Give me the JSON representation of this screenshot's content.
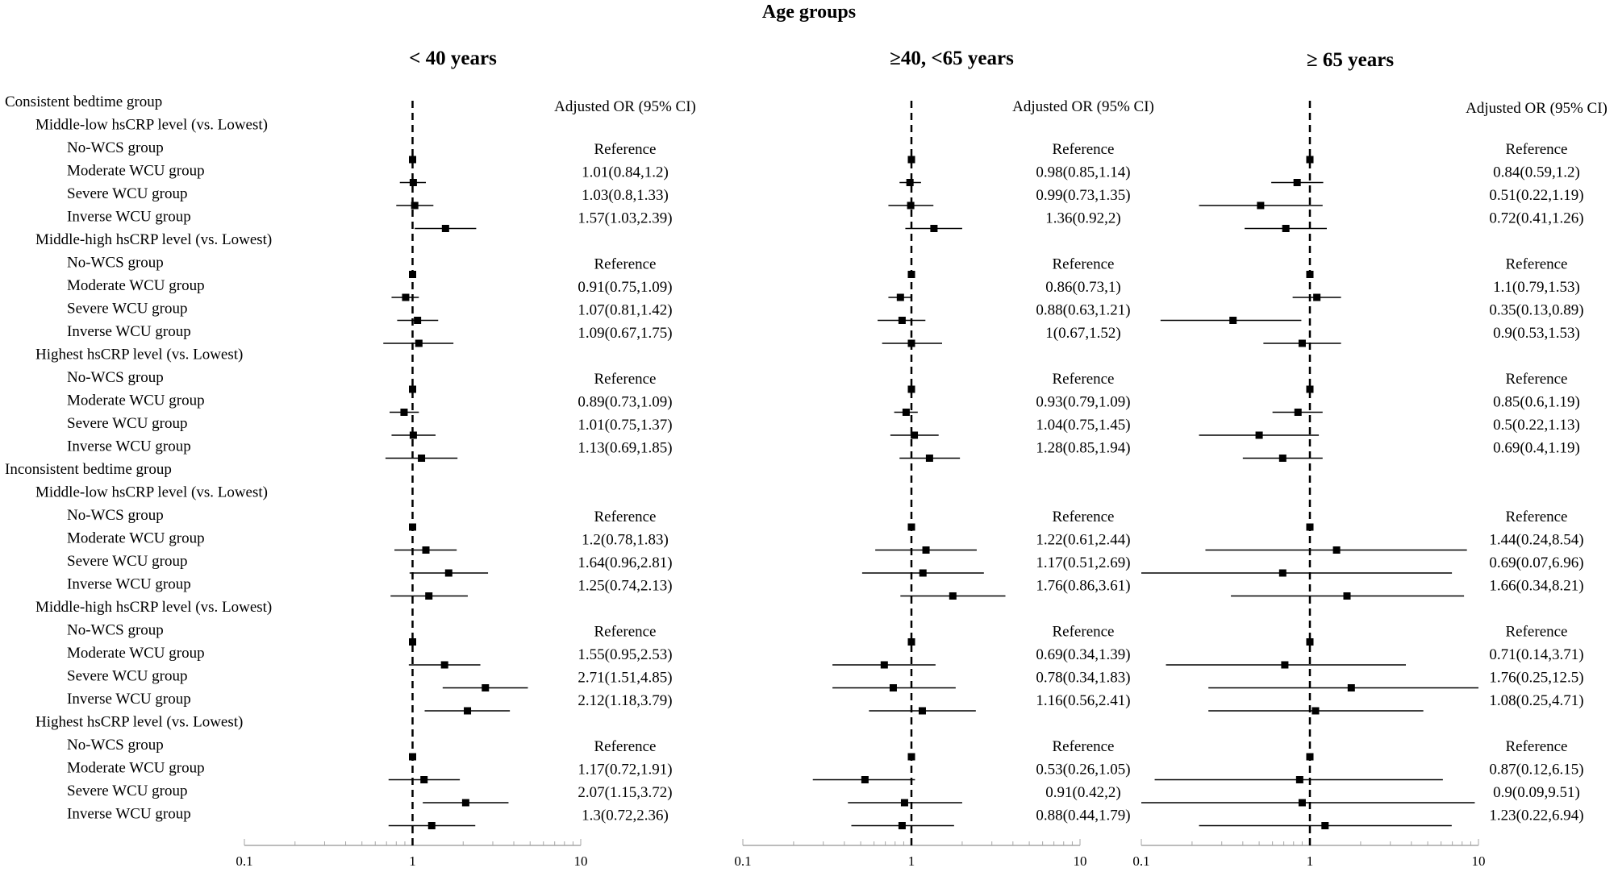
{
  "title": "Age groups",
  "ci_header": "Adjusted OR (95% CI)",
  "axis_ticks": [
    "0.1",
    "1",
    "10"
  ],
  "rows": [
    {
      "label": "Consistent bedtime group",
      "level": 0
    },
    {
      "label": "Middle-low hsCRP level (vs. Lowest)",
      "level": 1
    },
    {
      "label": "No-WCS group",
      "level": 2
    },
    {
      "label": "Moderate WCU group",
      "level": 2
    },
    {
      "label": "Severe WCU group",
      "level": 2
    },
    {
      "label": "Inverse WCU group",
      "level": 2
    },
    {
      "label": "Middle-high hsCRP level (vs. Lowest)",
      "level": 1
    },
    {
      "label": "No-WCS group",
      "level": 2
    },
    {
      "label": "Moderate WCU group",
      "level": 2
    },
    {
      "label": "Severe WCU group",
      "level": 2
    },
    {
      "label": "Inverse WCU group",
      "level": 2
    },
    {
      "label": "Highest hsCRP level (vs. Lowest)",
      "level": 1
    },
    {
      "label": "No-WCS group",
      "level": 2
    },
    {
      "label": "Moderate WCU group",
      "level": 2
    },
    {
      "label": "Severe WCU group",
      "level": 2
    },
    {
      "label": "Inverse WCU group",
      "level": 2
    },
    {
      "label": "Inconsistent bedtime group",
      "level": 0
    },
    {
      "label": "Middle-low hsCRP level (vs. Lowest)",
      "level": 1
    },
    {
      "label": "No-WCS group",
      "level": 2
    },
    {
      "label": "Moderate WCU group",
      "level": 2
    },
    {
      "label": "Severe WCU group",
      "level": 2
    },
    {
      "label": "Inverse WCU group",
      "level": 2
    },
    {
      "label": "Middle-high hsCRP level (vs. Lowest)",
      "level": 1
    },
    {
      "label": "No-WCS group",
      "level": 2
    },
    {
      "label": "Moderate WCU group",
      "level": 2
    },
    {
      "label": "Severe WCU group",
      "level": 2
    },
    {
      "label": "Inverse WCU group",
      "level": 2
    },
    {
      "label": "Highest hsCRP level (vs. Lowest)",
      "level": 1
    },
    {
      "label": "No-WCS group",
      "level": 2
    },
    {
      "label": "Moderate WCU group",
      "level": 2
    },
    {
      "label": "Severe WCU group",
      "level": 2
    },
    {
      "label": "Inverse WCU group",
      "level": 2
    }
  ],
  "chart_data": [
    {
      "type": "forest",
      "title": "< 40 years",
      "x_scale": "log",
      "xlim": [
        0.1,
        10
      ],
      "reference_line": 1,
      "points": [
        {
          "row": 2,
          "or": 1,
          "lo": 1,
          "hi": 1,
          "text": "Reference"
        },
        {
          "row": 3,
          "or": 1.01,
          "lo": 0.84,
          "hi": 1.2,
          "text": "1.01(0.84,1.2)"
        },
        {
          "row": 4,
          "or": 1.03,
          "lo": 0.8,
          "hi": 1.33,
          "text": "1.03(0.8,1.33)"
        },
        {
          "row": 5,
          "or": 1.57,
          "lo": 1.03,
          "hi": 2.39,
          "text": "1.57(1.03,2.39)"
        },
        {
          "row": 7,
          "or": 1,
          "lo": 1,
          "hi": 1,
          "text": "Reference"
        },
        {
          "row": 8,
          "or": 0.91,
          "lo": 0.75,
          "hi": 1.09,
          "text": "0.91(0.75,1.09)"
        },
        {
          "row": 9,
          "or": 1.07,
          "lo": 0.81,
          "hi": 1.42,
          "text": "1.07(0.81,1.42)"
        },
        {
          "row": 10,
          "or": 1.09,
          "lo": 0.67,
          "hi": 1.75,
          "text": "1.09(0.67,1.75)"
        },
        {
          "row": 12,
          "or": 1,
          "lo": 1,
          "hi": 1,
          "text": "Reference"
        },
        {
          "row": 13,
          "or": 0.89,
          "lo": 0.73,
          "hi": 1.09,
          "text": "0.89(0.73,1.09)"
        },
        {
          "row": 14,
          "or": 1.01,
          "lo": 0.75,
          "hi": 1.37,
          "text": "1.01(0.75,1.37)"
        },
        {
          "row": 15,
          "or": 1.13,
          "lo": 0.69,
          "hi": 1.85,
          "text": "1.13(0.69,1.85)"
        },
        {
          "row": 18,
          "or": 1,
          "lo": 1,
          "hi": 1,
          "text": "Reference"
        },
        {
          "row": 19,
          "or": 1.2,
          "lo": 0.78,
          "hi": 1.83,
          "text": "1.2(0.78,1.83)"
        },
        {
          "row": 20,
          "or": 1.64,
          "lo": 0.96,
          "hi": 2.81,
          "text": "1.64(0.96,2.81)"
        },
        {
          "row": 21,
          "or": 1.25,
          "lo": 0.74,
          "hi": 2.13,
          "text": "1.25(0.74,2.13)"
        },
        {
          "row": 23,
          "or": 1,
          "lo": 1,
          "hi": 1,
          "text": "Reference"
        },
        {
          "row": 24,
          "or": 1.55,
          "lo": 0.95,
          "hi": 2.53,
          "text": "1.55(0.95,2.53)"
        },
        {
          "row": 25,
          "or": 2.71,
          "lo": 1.51,
          "hi": 4.85,
          "text": "2.71(1.51,4.85)"
        },
        {
          "row": 26,
          "or": 2.12,
          "lo": 1.18,
          "hi": 3.79,
          "text": "2.12(1.18,3.79)"
        },
        {
          "row": 28,
          "or": 1,
          "lo": 1,
          "hi": 1,
          "text": "Reference"
        },
        {
          "row": 29,
          "or": 1.17,
          "lo": 0.72,
          "hi": 1.91,
          "text": "1.17(0.72,1.91)"
        },
        {
          "row": 30,
          "or": 2.07,
          "lo": 1.15,
          "hi": 3.72,
          "text": "2.07(1.15,3.72)"
        },
        {
          "row": 31,
          "or": 1.3,
          "lo": 0.72,
          "hi": 2.36,
          "text": "1.3(0.72,2.36)"
        }
      ]
    },
    {
      "type": "forest",
      "title": "≥40, <65 years",
      "x_scale": "log",
      "xlim": [
        0.1,
        10
      ],
      "reference_line": 1,
      "points": [
        {
          "row": 2,
          "or": 1,
          "lo": 1,
          "hi": 1,
          "text": "Reference"
        },
        {
          "row": 3,
          "or": 0.98,
          "lo": 0.85,
          "hi": 1.14,
          "text": "0.98(0.85,1.14)"
        },
        {
          "row": 4,
          "or": 0.99,
          "lo": 0.73,
          "hi": 1.35,
          "text": "0.99(0.73,1.35)"
        },
        {
          "row": 5,
          "or": 1.36,
          "lo": 0.92,
          "hi": 2,
          "text": "1.36(0.92,2)"
        },
        {
          "row": 7,
          "or": 1,
          "lo": 1,
          "hi": 1,
          "text": "Reference"
        },
        {
          "row": 8,
          "or": 0.86,
          "lo": 0.73,
          "hi": 1,
          "text": "0.86(0.73,1)"
        },
        {
          "row": 9,
          "or": 0.88,
          "lo": 0.63,
          "hi": 1.21,
          "text": "0.88(0.63,1.21)"
        },
        {
          "row": 10,
          "or": 1,
          "lo": 0.67,
          "hi": 1.52,
          "text": "1(0.67,1.52)"
        },
        {
          "row": 12,
          "or": 1,
          "lo": 1,
          "hi": 1,
          "text": "Reference"
        },
        {
          "row": 13,
          "or": 0.93,
          "lo": 0.79,
          "hi": 1.09,
          "text": "0.93(0.79,1.09)"
        },
        {
          "row": 14,
          "or": 1.04,
          "lo": 0.75,
          "hi": 1.45,
          "text": "1.04(0.75,1.45)"
        },
        {
          "row": 15,
          "or": 1.28,
          "lo": 0.85,
          "hi": 1.94,
          "text": "1.28(0.85,1.94)"
        },
        {
          "row": 18,
          "or": 1,
          "lo": 1,
          "hi": 1,
          "text": "Reference"
        },
        {
          "row": 19,
          "or": 1.22,
          "lo": 0.61,
          "hi": 2.44,
          "text": "1.22(0.61,2.44)"
        },
        {
          "row": 20,
          "or": 1.17,
          "lo": 0.51,
          "hi": 2.69,
          "text": "1.17(0.51,2.69)"
        },
        {
          "row": 21,
          "or": 1.76,
          "lo": 0.86,
          "hi": 3.61,
          "text": "1.76(0.86,3.61)"
        },
        {
          "row": 23,
          "or": 1,
          "lo": 1,
          "hi": 1,
          "text": "Reference"
        },
        {
          "row": 24,
          "or": 0.69,
          "lo": 0.34,
          "hi": 1.39,
          "text": "0.69(0.34,1.39)"
        },
        {
          "row": 25,
          "or": 0.78,
          "lo": 0.34,
          "hi": 1.83,
          "text": "0.78(0.34,1.83)"
        },
        {
          "row": 26,
          "or": 1.16,
          "lo": 0.56,
          "hi": 2.41,
          "text": "1.16(0.56,2.41)"
        },
        {
          "row": 28,
          "or": 1,
          "lo": 1,
          "hi": 1,
          "text": "Reference"
        },
        {
          "row": 29,
          "or": 0.53,
          "lo": 0.26,
          "hi": 1.05,
          "text": "0.53(0.26,1.05)"
        },
        {
          "row": 30,
          "or": 0.91,
          "lo": 0.42,
          "hi": 2,
          "text": "0.91(0.42,2)"
        },
        {
          "row": 31,
          "or": 0.88,
          "lo": 0.44,
          "hi": 1.79,
          "text": "0.88(0.44,1.79)"
        }
      ]
    },
    {
      "type": "forest",
      "title": "≥ 65 years",
      "x_scale": "log",
      "xlim": [
        0.1,
        10
      ],
      "reference_line": 1,
      "points": [
        {
          "row": 2,
          "or": 1,
          "lo": 1,
          "hi": 1,
          "text": "Reference"
        },
        {
          "row": 3,
          "or": 0.84,
          "lo": 0.59,
          "hi": 1.2,
          "text": "0.84(0.59,1.2)"
        },
        {
          "row": 4,
          "or": 0.51,
          "lo": 0.22,
          "hi": 1.19,
          "text": "0.51(0.22,1.19)"
        },
        {
          "row": 5,
          "or": 0.72,
          "lo": 0.41,
          "hi": 1.26,
          "text": "0.72(0.41,1.26)"
        },
        {
          "row": 7,
          "or": 1,
          "lo": 1,
          "hi": 1,
          "text": "Reference"
        },
        {
          "row": 8,
          "or": 1.1,
          "lo": 0.79,
          "hi": 1.53,
          "text": "1.1(0.79,1.53)"
        },
        {
          "row": 9,
          "or": 0.35,
          "lo": 0.13,
          "hi": 0.89,
          "text": "0.35(0.13,0.89)"
        },
        {
          "row": 10,
          "or": 0.9,
          "lo": 0.53,
          "hi": 1.53,
          "text": "0.9(0.53,1.53)"
        },
        {
          "row": 12,
          "or": 1,
          "lo": 1,
          "hi": 1,
          "text": "Reference"
        },
        {
          "row": 13,
          "or": 0.85,
          "lo": 0.6,
          "hi": 1.19,
          "text": "0.85(0.6,1.19)"
        },
        {
          "row": 14,
          "or": 0.5,
          "lo": 0.22,
          "hi": 1.13,
          "text": "0.5(0.22,1.13)"
        },
        {
          "row": 15,
          "or": 0.69,
          "lo": 0.4,
          "hi": 1.19,
          "text": "0.69(0.4,1.19)"
        },
        {
          "row": 18,
          "or": 1,
          "lo": 1,
          "hi": 1,
          "text": "Reference"
        },
        {
          "row": 19,
          "or": 1.44,
          "lo": 0.24,
          "hi": 8.54,
          "text": "1.44(0.24,8.54)"
        },
        {
          "row": 20,
          "or": 0.69,
          "lo": 0.07,
          "hi": 6.96,
          "text": "0.69(0.07,6.96)"
        },
        {
          "row": 21,
          "or": 1.66,
          "lo": 0.34,
          "hi": 8.21,
          "text": "1.66(0.34,8.21)"
        },
        {
          "row": 23,
          "or": 1,
          "lo": 1,
          "hi": 1,
          "text": "Reference"
        },
        {
          "row": 24,
          "or": 0.71,
          "lo": 0.14,
          "hi": 3.71,
          "text": "0.71(0.14,3.71)"
        },
        {
          "row": 25,
          "or": 1.76,
          "lo": 0.25,
          "hi": 12.5,
          "text": "1.76(0.25,12.5)"
        },
        {
          "row": 26,
          "or": 1.08,
          "lo": 0.25,
          "hi": 4.71,
          "text": "1.08(0.25,4.71)"
        },
        {
          "row": 28,
          "or": 1,
          "lo": 1,
          "hi": 1,
          "text": "Reference"
        },
        {
          "row": 29,
          "or": 0.87,
          "lo": 0.12,
          "hi": 6.15,
          "text": "0.87(0.12,6.15)"
        },
        {
          "row": 30,
          "or": 0.9,
          "lo": 0.09,
          "hi": 9.51,
          "text": "0.9(0.09,9.51)"
        },
        {
          "row": 31,
          "or": 1.23,
          "lo": 0.22,
          "hi": 6.94,
          "text": "1.23(0.22,6.94)"
        }
      ]
    }
  ]
}
